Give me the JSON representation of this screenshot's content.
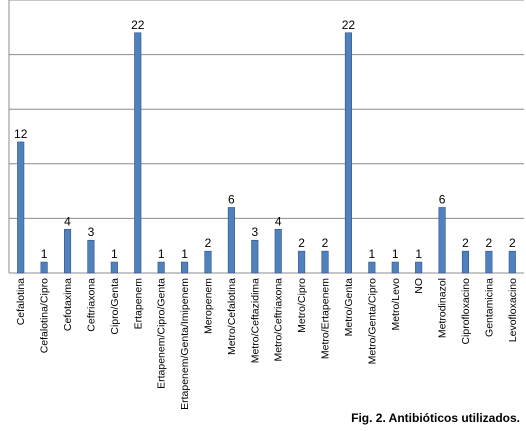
{
  "caption": "Fig. 2. Antibióticos utilizados.",
  "chart_data": {
    "type": "bar",
    "title": "",
    "xlabel": "",
    "ylabel": "",
    "ylim": [
      0,
      25
    ],
    "grid": true,
    "bar_color": "#4f81bd",
    "categories": [
      "Cefalotina",
      "Cefalotina/Cipro",
      "Cefotaxima",
      "Ceftriaxona",
      "Cipro/Genta",
      "Ertapenem",
      "Ertapenem/Cipro/Genta",
      "Ertapenem/Genta/Imipenem",
      "Meropenem",
      "Metro/Cefalotina",
      "Metro/Ceftazidima",
      "Metro/Ceftriaxona",
      "Metro/Cipro",
      "Metro/Ertapenem",
      "Metro/Genta",
      "Metro/Genta/Cipro",
      "Metro/Levo",
      "NO",
      "Metrodinazol",
      "Ciprofloxacino",
      "Gentamicina",
      "Levofloxacino"
    ],
    "values": [
      12,
      1,
      4,
      3,
      1,
      22,
      1,
      1,
      2,
      6,
      3,
      4,
      2,
      2,
      22,
      1,
      1,
      1,
      6,
      2,
      2,
      2
    ]
  }
}
